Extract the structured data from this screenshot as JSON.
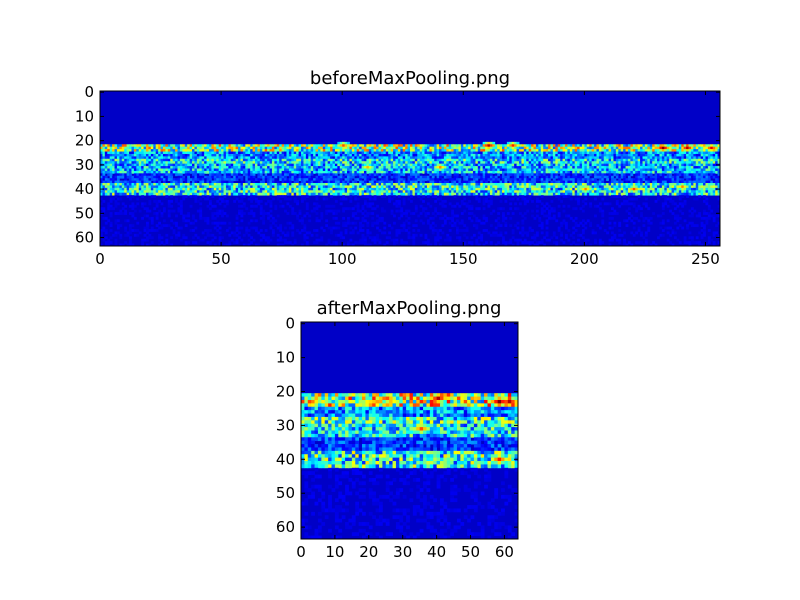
{
  "chart_data": [
    {
      "type": "heatmap",
      "title": "beforeMaxPooling.png",
      "colormap": "jet",
      "background_value": 0.0,
      "xlim": [
        0,
        256
      ],
      "ylim": [
        64,
        0
      ],
      "xticks": [
        "0",
        "50",
        "100",
        "150",
        "200",
        "250"
      ],
      "yticks": [
        "0",
        "10",
        "20",
        "30",
        "40",
        "50",
        "60"
      ],
      "bands": [
        {
          "rows": [
            22,
            24
          ],
          "intensity": 0.55
        },
        {
          "rows": [
            25,
            27
          ],
          "intensity": 0.3
        },
        {
          "rows": [
            28,
            29
          ],
          "intensity": 0.4
        },
        {
          "rows": [
            30,
            33
          ],
          "intensity": 0.35
        },
        {
          "rows": [
            34,
            37
          ],
          "intensity": 0.18
        },
        {
          "rows": [
            38,
            42
          ],
          "intensity": 0.42
        },
        {
          "rows": [
            43,
            63
          ],
          "intensity": 0.08
        }
      ],
      "hotspots": [
        {
          "x": 100,
          "y": 22,
          "value": 0.8
        },
        {
          "x": 160,
          "y": 22,
          "value": 0.95
        },
        {
          "x": 170,
          "y": 22,
          "value": 0.85
        },
        {
          "x": 232,
          "y": 23,
          "value": 1.0
        },
        {
          "x": 242,
          "y": 23,
          "value": 0.95
        },
        {
          "x": 252,
          "y": 23,
          "value": 0.9
        },
        {
          "x": 140,
          "y": 31,
          "value": 0.75
        },
        {
          "x": 110,
          "y": 31,
          "value": 0.7
        },
        {
          "x": 200,
          "y": 40,
          "value": 0.75
        },
        {
          "x": 220,
          "y": 40,
          "value": 0.8
        },
        {
          "x": 240,
          "y": 39,
          "value": 0.75
        }
      ]
    },
    {
      "type": "heatmap",
      "title": "afterMaxPooling.png",
      "colormap": "jet",
      "background_value": 0.0,
      "xlim": [
        0,
        64
      ],
      "ylim": [
        64,
        0
      ],
      "xticks": [
        "0",
        "10",
        "20",
        "30",
        "40",
        "50",
        "60"
      ],
      "yticks": [
        "0",
        "10",
        "20",
        "30",
        "40",
        "50",
        "60"
      ],
      "bands": [
        {
          "rows": [
            21,
            24
          ],
          "intensity": 0.6
        },
        {
          "rows": [
            25,
            27
          ],
          "intensity": 0.3
        },
        {
          "rows": [
            28,
            29
          ],
          "intensity": 0.45
        },
        {
          "rows": [
            30,
            33
          ],
          "intensity": 0.4
        },
        {
          "rows": [
            34,
            37
          ],
          "intensity": 0.2
        },
        {
          "rows": [
            38,
            42
          ],
          "intensity": 0.45
        },
        {
          "rows": [
            43,
            63
          ],
          "intensity": 0.08
        }
      ],
      "hotspots": [
        {
          "x": 40,
          "y": 22,
          "value": 0.95
        },
        {
          "x": 58,
          "y": 23,
          "value": 1.0
        },
        {
          "x": 61,
          "y": 23,
          "value": 0.95
        },
        {
          "x": 25,
          "y": 22,
          "value": 0.8
        },
        {
          "x": 35,
          "y": 31,
          "value": 0.8
        },
        {
          "x": 58,
          "y": 40,
          "value": 0.85
        },
        {
          "x": 3,
          "y": 23,
          "value": 0.75
        }
      ]
    }
  ]
}
